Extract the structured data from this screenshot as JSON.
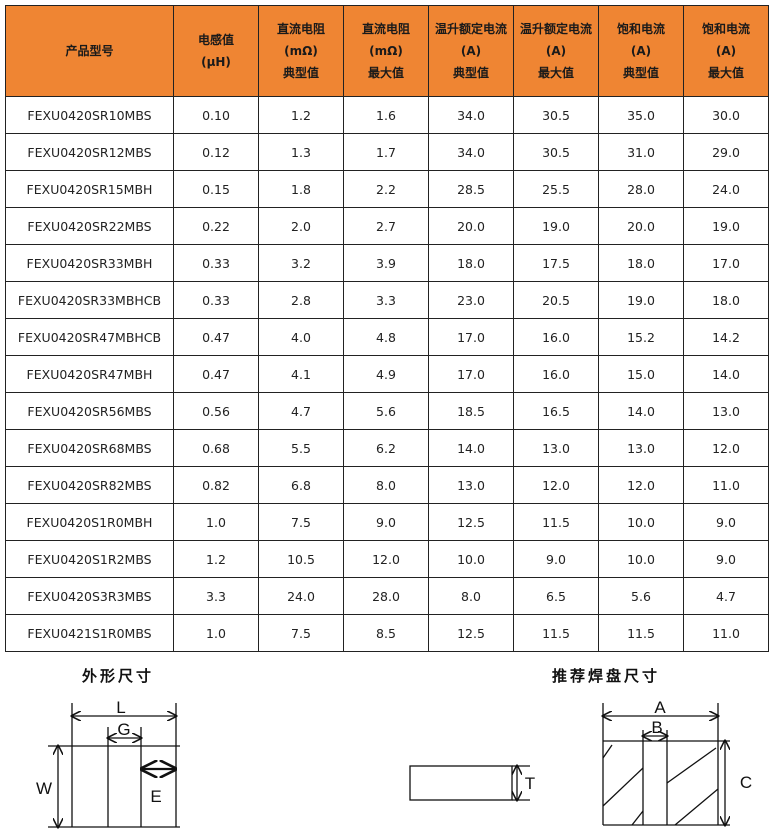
{
  "table": {
    "headers": [
      {
        "lines": [
          "产品型号"
        ]
      },
      {
        "lines": [
          "电感值",
          "(µH)"
        ]
      },
      {
        "lines": [
          "直流电阻",
          "(mΩ)",
          "典型值"
        ]
      },
      {
        "lines": [
          "直流电阻",
          "(mΩ)",
          "最大值"
        ]
      },
      {
        "lines": [
          "温升额定电流",
          "(A)",
          "典型值"
        ]
      },
      {
        "lines": [
          "温升额定电流",
          "(A)",
          "最大值"
        ]
      },
      {
        "lines": [
          "饱和电流",
          "(A)",
          "典型值"
        ]
      },
      {
        "lines": [
          "饱和电流",
          "(A)",
          "最大值"
        ]
      }
    ],
    "rows": [
      [
        "FEXU0420SR10MBS",
        "0.10",
        "1.2",
        "1.6",
        "34.0",
        "30.5",
        "35.0",
        "30.0"
      ],
      [
        "FEXU0420SR12MBS",
        "0.12",
        "1.3",
        "1.7",
        "34.0",
        "30.5",
        "31.0",
        "29.0"
      ],
      [
        "FEXU0420SR15MBH",
        "0.15",
        "1.8",
        "2.2",
        "28.5",
        "25.5",
        "28.0",
        "24.0"
      ],
      [
        "FEXU0420SR22MBS",
        "0.22",
        "2.0",
        "2.7",
        "20.0",
        "19.0",
        "20.0",
        "19.0"
      ],
      [
        "FEXU0420SR33MBH",
        "0.33",
        "3.2",
        "3.9",
        "18.0",
        "17.5",
        "18.0",
        "17.0"
      ],
      [
        "FEXU0420SR33MBHCB",
        "0.33",
        "2.8",
        "3.3",
        "23.0",
        "20.5",
        "19.0",
        "18.0"
      ],
      [
        "FEXU0420SR47MBHCB",
        "0.47",
        "4.0",
        "4.8",
        "17.0",
        "16.0",
        "15.2",
        "14.2"
      ],
      [
        "FEXU0420SR47MBH",
        "0.47",
        "4.1",
        "4.9",
        "17.0",
        "16.0",
        "15.0",
        "14.0"
      ],
      [
        "FEXU0420SR56MBS",
        "0.56",
        "4.7",
        "5.6",
        "18.5",
        "16.5",
        "14.0",
        "13.0"
      ],
      [
        "FEXU0420SR68MBS",
        "0.68",
        "5.5",
        "6.2",
        "14.0",
        "13.0",
        "13.0",
        "12.0"
      ],
      [
        "FEXU0420SR82MBS",
        "0.82",
        "6.8",
        "8.0",
        "13.0",
        "12.0",
        "12.0",
        "11.0"
      ],
      [
        "FEXU0420S1R0MBH",
        "1.0",
        "7.5",
        "9.0",
        "12.5",
        "11.5",
        "10.0",
        "9.0"
      ],
      [
        "FEXU0420S1R2MBS",
        "1.2",
        "10.5",
        "12.0",
        "10.0",
        "9.0",
        "10.0",
        "9.0"
      ],
      [
        "FEXU0420S3R3MBS",
        "3.3",
        "24.0",
        "28.0",
        "8.0",
        "6.5",
        "5.6",
        "4.7"
      ],
      [
        "FEXU0421S1R0MBS",
        "1.0",
        "7.5",
        "8.5",
        "12.5",
        "11.5",
        "11.5",
        "11.0"
      ]
    ],
    "header_color": "#ef8533"
  },
  "diagrams": {
    "outline": {
      "title": "外形尺寸",
      "labels": {
        "L": "L",
        "G": "G",
        "W": "W",
        "E": "E"
      }
    },
    "pad": {
      "title": "推荐焊盘尺寸",
      "labels": {
        "T": "T",
        "A": "A",
        "B": "B",
        "C": "C"
      }
    }
  }
}
